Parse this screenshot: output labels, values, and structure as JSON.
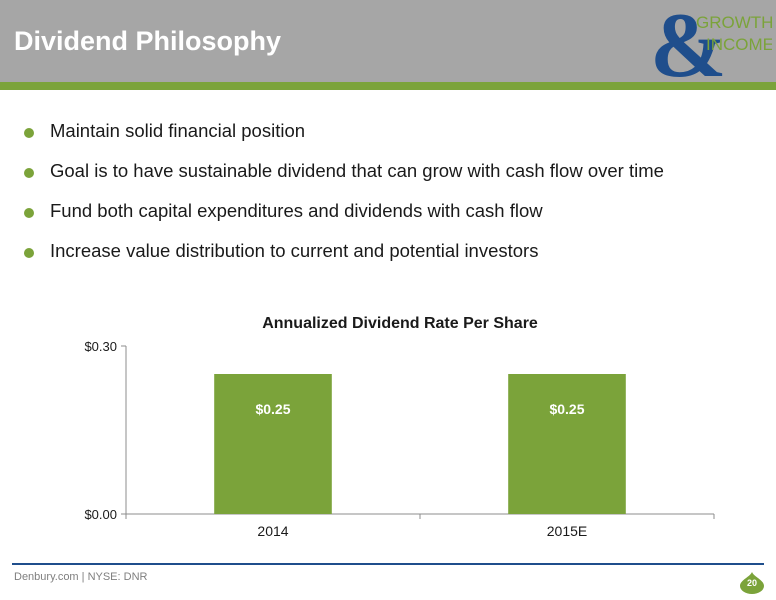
{
  "slide": {
    "title": "Dividend Philosophy",
    "bullets": [
      "Maintain solid financial position",
      "Goal is to have sustainable dividend that can grow with cash flow over time",
      "Fund both capital expenditures and dividends with cash flow",
      "Increase value distribution to current and potential investors"
    ],
    "logo": {
      "symbol": "&",
      "line1": "GROWTH",
      "line2": "INCOME"
    },
    "footer": "Denbury.com | NYSE: DNR",
    "page_number": "20"
  },
  "colors": {
    "header": "#a6a6a6",
    "accent_green": "#7ba33a",
    "logo_blue": "#1f4e8c",
    "bar": "#7ba33a"
  },
  "chart_data": {
    "type": "bar",
    "title": "Annualized Dividend Rate Per Share",
    "categories": [
      "2014",
      "2015E"
    ],
    "values": [
      0.25,
      0.25
    ],
    "data_labels": [
      "$0.25",
      "$0.25"
    ],
    "yticks": [
      "$0.00",
      "$0.30"
    ],
    "ylim": [
      0,
      0.3
    ],
    "grid": false,
    "legend": "none"
  }
}
